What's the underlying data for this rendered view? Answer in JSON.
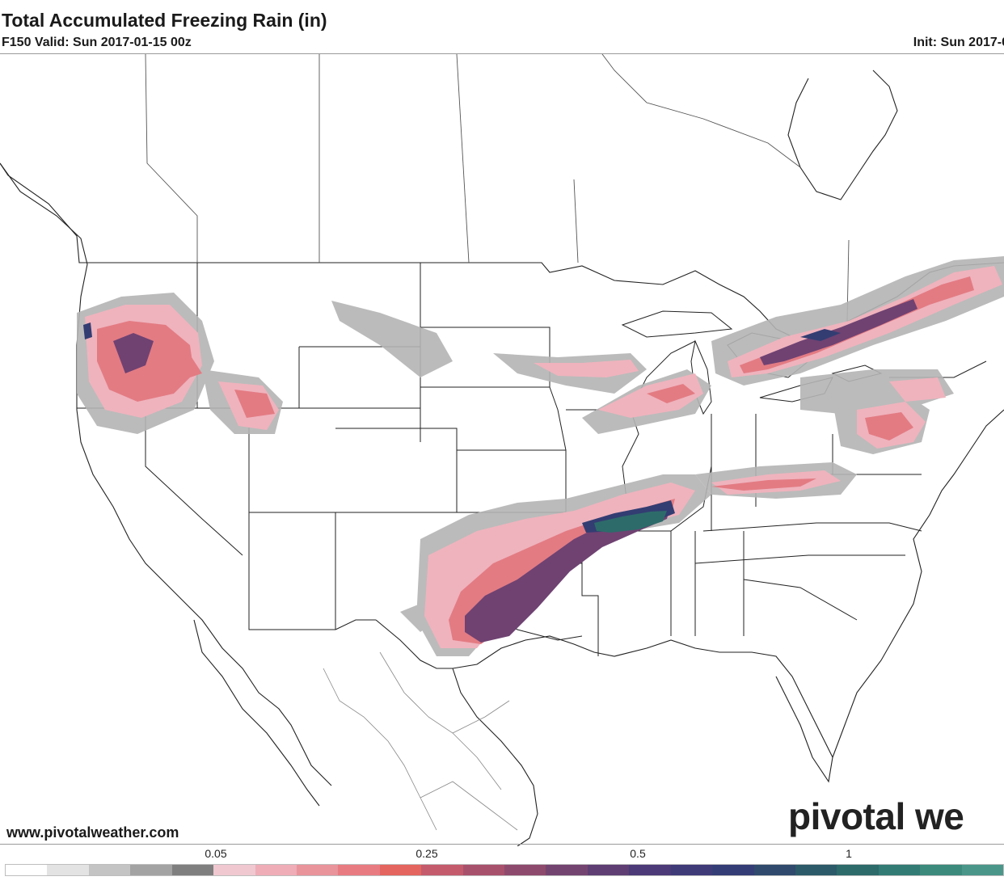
{
  "header": {
    "title": "Total Accumulated Freezing Rain (in)",
    "valid": "F150 Valid: Sun 2017-01-15 00z",
    "init": "Init: Sun 2017-0"
  },
  "footer": {
    "website": "www.pivotalweather.com",
    "logo": "pivotal we"
  },
  "legend": {
    "ticks": [
      "0.05",
      "0.25",
      "0.5",
      "1"
    ],
    "colors": [
      "#ffffff",
      "#e3e3e3",
      "#c4c4c4",
      "#a3a3a3",
      "#7f7f7f",
      "#efc8d0",
      "#eeadb7",
      "#e9939b",
      "#e87b81",
      "#e4655f",
      "#c45b6d",
      "#a8516c",
      "#8e4a6c",
      "#744470",
      "#5e3e73",
      "#4c3a78",
      "#3f3b79",
      "#353d76",
      "#2f4a6c",
      "#2c5a68",
      "#2d6a6a",
      "#327b74",
      "#3b8a7c",
      "#4a978a"
    ]
  },
  "map": {
    "regions": [
      "Pacific Northwest / Idaho",
      "Southern Plains to Tennessee Valley",
      "Great Lakes to Ontario / Quebec",
      "Pennsylvania / Mid-Atlantic"
    ]
  }
}
